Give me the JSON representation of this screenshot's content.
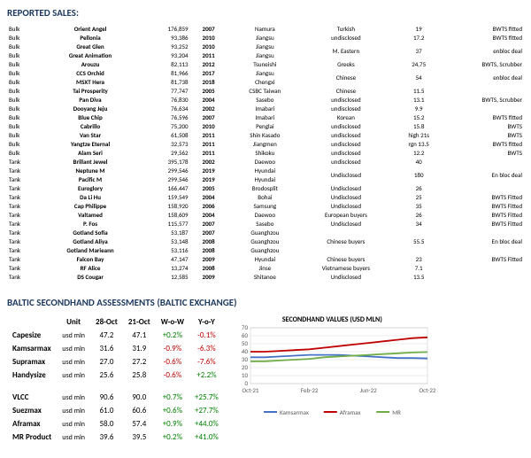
{
  "titles": {
    "reported_sales": "REPORTED SALES:",
    "baltic": "BALTIC SECONDHAND ASSESSMENTS  (BALTIC EXCHANGE)",
    "chart": "SECONDHAND VALUES (USD MLN)"
  },
  "sales": [
    {
      "type": "Bulk",
      "name": "Orient Angel",
      "num": "176,859",
      "year": "2007",
      "yard": "Namura",
      "buyer": "Turkish",
      "price": "19",
      "note": "BWTS fitted"
    },
    {
      "type": "Bulk",
      "name": "Pellonia",
      "num": "93,386",
      "year": "2010",
      "yard": "Jiangsu",
      "buyer": "undisclosed",
      "price": "17.2",
      "note": "BWTS fitted"
    },
    {
      "type": "Bulk",
      "name": "Great Glen",
      "num": "93,252",
      "year": "2010",
      "yard": "Jiangsu",
      "buyer": "M. Eastern",
      "price": "37",
      "note": "enbloc deal",
      "rowspan": 2
    },
    {
      "type": "Bulk",
      "name": "Great Animation",
      "num": "93,204",
      "year": "2011",
      "yard": "Jiangsu",
      "buyer": "",
      "price": "",
      "note": ""
    },
    {
      "type": "Bulk",
      "name": "Arouzu",
      "num": "82,113",
      "year": "2012",
      "yard": "Tsuneishi",
      "buyer": "Greeks",
      "price": "24,75",
      "note": "BWTS, Scrubber"
    },
    {
      "type": "Bulk",
      "name": "CCS Orchid",
      "num": "81,966",
      "year": "2017",
      "yard": "Jiangsu",
      "buyer": "Chinese",
      "price": "54",
      "note": "enbloc deal",
      "rowspan": 2
    },
    {
      "type": "Bulk",
      "name": "MSXT Hera",
      "num": "81,738",
      "year": "2018",
      "yard": "Chengxi",
      "buyer": "",
      "price": "",
      "note": ""
    },
    {
      "type": "Bulk",
      "name": "Tai Prosperity",
      "num": "77,747",
      "year": "2005",
      "yard": "CSBC Taiwan",
      "buyer": "Chinese",
      "price": "11.5",
      "note": ""
    },
    {
      "type": "Bulk",
      "name": "Pan Diva",
      "num": "76,830",
      "year": "2004",
      "yard": "Sasebo",
      "buyer": "undisclosed",
      "price": "13.1",
      "note": "BWTS, Scrubber"
    },
    {
      "type": "Bulk",
      "name": "Dooyang Jeju",
      "num": "76,634",
      "year": "2002",
      "yard": "Imabari",
      "buyer": "undisclosed",
      "price": "9.9",
      "note": ""
    },
    {
      "type": "Bulk",
      "name": "Blue Chip",
      "num": "76,596",
      "year": "2007",
      "yard": "Imabari",
      "buyer": "Korean",
      "price": "15.2",
      "note": "BWTS fitted"
    },
    {
      "type": "Bulk",
      "name": "Cabrillo",
      "num": "75,200",
      "year": "2010",
      "yard": "Penglai",
      "buyer": "undisclosed",
      "price": "15.8",
      "note": "BWTS"
    },
    {
      "type": "Bulk",
      "name": "Van Star",
      "num": "61,508",
      "year": "2011",
      "yard": "Shin Kasado",
      "buyer": "undisclosed",
      "price": "high 21s",
      "note": "BWTS"
    },
    {
      "type": "Bulk",
      "name": "Yangtze Eternal",
      "num": "32,573",
      "year": "2011",
      "yard": "Jiangmen",
      "buyer": "undisclosed",
      "price": "rgn 13.5",
      "note": "BWTS fitted"
    },
    {
      "type": "Bulk",
      "name": "Alam Seri",
      "num": "29,562",
      "year": "2011",
      "yard": "Shikoku",
      "buyer": "undisclosed",
      "price": "12.2",
      "note": "BWTS"
    },
    {
      "type": "Tank",
      "name": "Brillant Jewel",
      "num": "395,178",
      "year": "2002",
      "yard": "Daewoo",
      "buyer": "undisclosed",
      "price": "40",
      "note": ""
    },
    {
      "type": "Tank",
      "name": "Neptune M",
      "num": "299,546",
      "year": "2019",
      "yard": "Hyundai",
      "buyer": "Undisclosed",
      "price": "180",
      "note": "En bloc deal",
      "rowspan": 2
    },
    {
      "type": "Tank",
      "name": "Pacific M",
      "num": "299,546",
      "year": "2019",
      "yard": "Hyundai",
      "buyer": "",
      "price": "",
      "note": ""
    },
    {
      "type": "Tank",
      "name": "Euroglory",
      "num": "166,447",
      "year": "2005",
      "yard": "Brodosplit",
      "buyer": "Undisclosed",
      "price": "26",
      "note": ""
    },
    {
      "type": "Tank",
      "name": "Da Li Hu",
      "num": "159,549",
      "year": "2004",
      "yard": "Bohai",
      "buyer": "Undisclosed",
      "price": "25",
      "note": "BWTS Fitted"
    },
    {
      "type": "Tank",
      "name": "Cap Philippe",
      "num": "158,920",
      "year": "2006",
      "yard": "Samsung",
      "buyer": "Undisclosed",
      "price": "35",
      "note": "BWTS Fitted"
    },
    {
      "type": "Tank",
      "name": "Valtamed",
      "num": "158,609",
      "year": "2004",
      "yard": "Daewoo",
      "buyer": "European buyers",
      "price": "26",
      "note": "BWTS Fitted"
    },
    {
      "type": "Tank",
      "name": "P. Fos",
      "num": "115,577",
      "year": "2007",
      "yard": "Sasebo",
      "buyer": "Undisclosed",
      "price": "34",
      "note": "BWTS Fitted"
    },
    {
      "type": "Tank",
      "name": "Gotland Sofia",
      "num": "53,187",
      "year": "2007",
      "yard": "Guanghzou",
      "buyer": "Chinese buyers",
      "price": "55.5",
      "note": "En bloc deal",
      "rowspan": 3
    },
    {
      "type": "Tank",
      "name": "Gotland Aliya",
      "num": "53,148",
      "year": "2008",
      "yard": "Guanghzou",
      "buyer": "",
      "price": "",
      "note": ""
    },
    {
      "type": "Tank",
      "name": "Gotland Marieann",
      "num": "53,116",
      "year": "2008",
      "yard": "Guanghzou",
      "buyer": "",
      "price": "",
      "note": ""
    },
    {
      "type": "Tank",
      "name": "Falcon Bay",
      "num": "47,147",
      "year": "2009",
      "yard": "Hyundai",
      "buyer": "Chinese buyers",
      "price": "23",
      "note": "BWTS Fitted"
    },
    {
      "type": "Tank",
      "name": "RF Alice",
      "num": "13,274",
      "year": "2008",
      "yard": "Jinse",
      "buyer": "Vietnamese buyers",
      "price": "7.1",
      "note": ""
    },
    {
      "type": "Tank",
      "name": "DS Cougar",
      "num": "12,585",
      "year": "2009",
      "yard": "Shitanoe",
      "buyer": "Undisclosed",
      "price": "13.5",
      "note": ""
    }
  ],
  "assess": {
    "headers": [
      "",
      "Unit",
      "28-Oct",
      "21-Oct",
      "W-o-W",
      "Y-o-Y"
    ],
    "rows": [
      {
        "name": "Capesize",
        "unit": "usd mln",
        "d1": "47.2",
        "d2": "47.1",
        "wow": "+0.2%",
        "wow_c": "pos",
        "yoy": "-0.1%",
        "yoy_c": "neg"
      },
      {
        "name": "Kamsarmax",
        "unit": "usd mln",
        "d1": "31.6",
        "d2": "31.9",
        "wow": "-0.9%",
        "wow_c": "neg",
        "yoy": "-6.3%",
        "yoy_c": "neg"
      },
      {
        "name": "Supramax",
        "unit": "usd mln",
        "d1": "27.0",
        "d2": "27.2",
        "wow": "-0.6%",
        "wow_c": "neg",
        "yoy": "-7.6%",
        "yoy_c": "neg"
      },
      {
        "name": "Handysize",
        "unit": "usd mln",
        "d1": "25.6",
        "d2": "25.8",
        "wow": "-0.6%",
        "wow_c": "neg",
        "yoy": "+2.2%",
        "yoy_c": "pos"
      },
      {
        "spacer": true
      },
      {
        "name": "VLCC",
        "unit": "usd mln",
        "d1": "90.6",
        "d2": "90.0",
        "wow": "+0.7%",
        "wow_c": "pos",
        "yoy": "+25.7%",
        "yoy_c": "pos"
      },
      {
        "name": "Suezmax",
        "unit": "usd mln",
        "d1": "61.0",
        "d2": "60.6",
        "wow": "+0.6%",
        "wow_c": "pos",
        "yoy": "+27.7%",
        "yoy_c": "pos"
      },
      {
        "name": "Aframax",
        "unit": "usd mln",
        "d1": "58.0",
        "d2": "57.4",
        "wow": "+0.9%",
        "wow_c": "pos",
        "yoy": "+44.0%",
        "yoy_c": "pos"
      },
      {
        "name": "MR Product",
        "unit": "usd mln",
        "d1": "39.6",
        "d2": "39.5",
        "wow": "+0.2%",
        "wow_c": "pos",
        "yoy": "+41.0%",
        "yoy_c": "pos"
      }
    ]
  },
  "chart": {
    "ylim": [
      0,
      70
    ],
    "ytick_step": 10,
    "x_labels": [
      "Oct-21",
      "Feb-22",
      "Jun-22",
      "Oct-22"
    ],
    "grid_color": "#d9d9d9",
    "background_color": "#ffffff",
    "fontsize": 7,
    "series": [
      {
        "name": "Kamsarmax",
        "color": "#4472c4",
        "values": [
          33,
          33,
          34,
          35,
          36,
          36,
          36,
          35,
          34,
          33,
          32,
          32,
          31.6
        ]
      },
      {
        "name": "Aframax",
        "color": "#c00000",
        "values": [
          40,
          40,
          41,
          42,
          43,
          45,
          47,
          49,
          51,
          53,
          55,
          57,
          58
        ]
      },
      {
        "name": "MR",
        "color": "#70ad47",
        "values": [
          28,
          28,
          29,
          30,
          31,
          33,
          34,
          35,
          36,
          37,
          38,
          39,
          39.6
        ]
      }
    ]
  }
}
